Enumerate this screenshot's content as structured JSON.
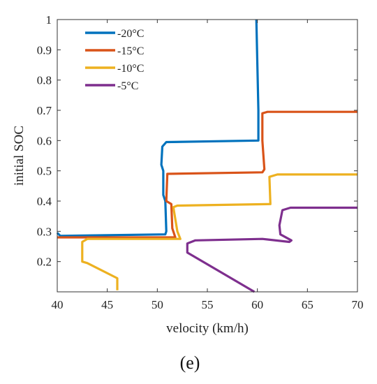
{
  "panel_label": "(e)",
  "chart_data": {
    "type": "line",
    "title": "",
    "xlabel": "velocity (km/h)",
    "ylabel": "initial SOC",
    "xlim": [
      40,
      70
    ],
    "ylim": [
      0.1,
      1.0
    ],
    "xticks": [
      40,
      45,
      50,
      55,
      60,
      65,
      70
    ],
    "yticks": [
      0.2,
      0.3,
      0.4,
      0.5,
      0.6,
      0.7,
      0.8,
      0.9,
      1.0
    ],
    "ytick_labels": [
      "0.2",
      "0.3",
      "0.4",
      "0.5",
      "0.6",
      "0.7",
      "0.8",
      "0.9",
      "1"
    ],
    "grid": false,
    "legend_position": "top-left",
    "series": [
      {
        "name": "-20°C",
        "color": "#0072BD",
        "points": [
          [
            40,
            0.295
          ],
          [
            40.3,
            0.285
          ],
          [
            50.8,
            0.29
          ],
          [
            50.9,
            0.3
          ],
          [
            50.8,
            0.4
          ],
          [
            50.6,
            0.42
          ],
          [
            50.6,
            0.5
          ],
          [
            50.4,
            0.52
          ],
          [
            50.5,
            0.58
          ],
          [
            50.9,
            0.595
          ],
          [
            60.1,
            0.6
          ],
          [
            60.1,
            0.7
          ],
          [
            59.9,
            1.0
          ]
        ]
      },
      {
        "name": "-15°C",
        "color": "#D95319",
        "points": [
          [
            40,
            0.28
          ],
          [
            51.8,
            0.28
          ],
          [
            51.5,
            0.31
          ],
          [
            51.4,
            0.39
          ],
          [
            50.9,
            0.4
          ],
          [
            51.0,
            0.49
          ],
          [
            60.5,
            0.495
          ],
          [
            60.7,
            0.505
          ],
          [
            60.5,
            0.6
          ],
          [
            60.5,
            0.69
          ],
          [
            61.0,
            0.695
          ],
          [
            70,
            0.695
          ]
        ]
      },
      {
        "name": "-10°C",
        "color": "#EDB120",
        "points": [
          [
            46,
            0.105
          ],
          [
            46,
            0.145
          ],
          [
            43,
            0.195
          ],
          [
            42.5,
            0.2
          ],
          [
            42.5,
            0.265
          ],
          [
            43.0,
            0.275
          ],
          [
            52.3,
            0.275
          ],
          [
            52.0,
            0.3
          ],
          [
            51.6,
            0.38
          ],
          [
            52.0,
            0.385
          ],
          [
            61.3,
            0.39
          ],
          [
            61.2,
            0.48
          ],
          [
            62.0,
            0.488
          ],
          [
            70,
            0.488
          ]
        ]
      },
      {
        "name": "-5°C",
        "color": "#7E2F8E",
        "points": [
          [
            59.7,
            0.1
          ],
          [
            53.0,
            0.23
          ],
          [
            53.0,
            0.26
          ],
          [
            53.8,
            0.27
          ],
          [
            60.5,
            0.275
          ],
          [
            63.2,
            0.265
          ],
          [
            63.4,
            0.27
          ],
          [
            62.3,
            0.29
          ],
          [
            62.2,
            0.32
          ],
          [
            62.5,
            0.37
          ],
          [
            63.3,
            0.378
          ],
          [
            70,
            0.378
          ]
        ]
      }
    ]
  }
}
